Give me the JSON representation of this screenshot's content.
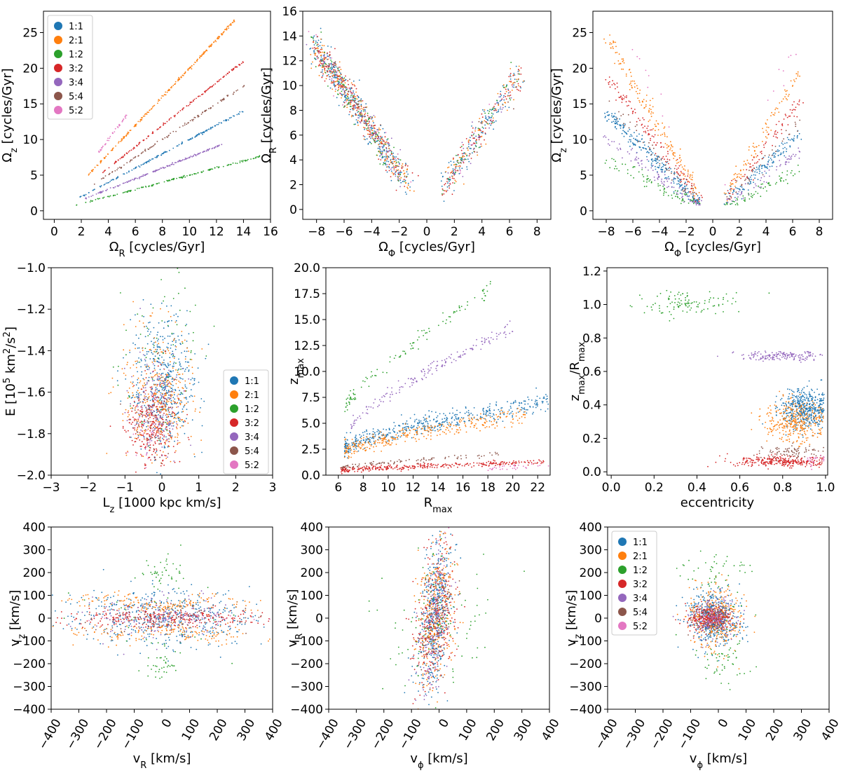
{
  "figure": {
    "colors": {
      "1:1": "#1f77b4",
      "2:1": "#ff7f0e",
      "1:2": "#2ca02c",
      "3:2": "#d62728",
      "3:4": "#9467bd",
      "5:4": "#8c564b",
      "5:2": "#e377c2"
    },
    "resonances": [
      "1:1",
      "2:1",
      "1:2",
      "3:2",
      "3:4",
      "5:4",
      "5:2"
    ]
  },
  "chart_data": [
    {
      "id": "p1",
      "type": "scatter",
      "xlabel": "Ω_R [cycles/Gyr]",
      "ylabel": "Ω_z [cycles/Gyr]",
      "xlim": [
        -0.8,
        16
      ],
      "ylim": [
        -1.2,
        28
      ],
      "xticks": [
        "0",
        "2",
        "4",
        "6",
        "8",
        "10",
        "12",
        "14",
        "16"
      ],
      "xtick_values": [
        0,
        2,
        4,
        6,
        8,
        10,
        12,
        14,
        16
      ],
      "yticks": [
        "0",
        "5",
        "10",
        "15",
        "20",
        "25"
      ],
      "ytick_values": [
        0,
        5,
        10,
        15,
        20,
        25
      ],
      "legend": {
        "location": "upper-left",
        "entries": [
          "1:1",
          "2:1",
          "1:2",
          "3:2",
          "3:4",
          "5:4",
          "5:2"
        ]
      },
      "series": [
        {
          "name": "1:1",
          "shape": "line",
          "x": [
            1.8,
            14.0
          ],
          "slope": 1.0,
          "n": 160,
          "spread": 0.05
        },
        {
          "name": "2:1",
          "shape": "line",
          "x": [
            2.4,
            13.4
          ],
          "slope": 2.0,
          "n": 220,
          "spread": 0.08
        },
        {
          "name": "1:2",
          "shape": "line",
          "x": [
            1.4,
            15.2
          ],
          "slope": 0.5,
          "n": 150,
          "spread": 0.05
        },
        {
          "name": "3:2",
          "shape": "line",
          "x": [
            3.4,
            14.0
          ],
          "slope": 1.5,
          "n": 150,
          "spread": 0.06
        },
        {
          "name": "3:4",
          "shape": "line",
          "x": [
            2.2,
            12.4
          ],
          "slope": 0.75,
          "n": 160,
          "spread": 0.05
        },
        {
          "name": "5:4",
          "shape": "line",
          "x": [
            2.8,
            14.2
          ],
          "slope": 1.25,
          "n": 110,
          "spread": 0.06
        },
        {
          "name": "5:2",
          "shape": "line",
          "x": [
            3.2,
            5.5
          ],
          "slope": 2.5,
          "n": 40,
          "spread": 0.12
        }
      ]
    },
    {
      "id": "p2",
      "type": "scatter",
      "xlabel": "Ω_Φ [cycles/Gyr]",
      "ylabel": "Ω_R [cycles/Gyr]",
      "xlim": [
        -9,
        9
      ],
      "ylim": [
        -0.8,
        16
      ],
      "xticks": [
        "−8",
        "−6",
        "−4",
        "−2",
        "0",
        "2",
        "4",
        "6",
        "8"
      ],
      "xtick_values": [
        -8,
        -6,
        -4,
        -2,
        0,
        2,
        4,
        6,
        8
      ],
      "yticks": [
        "0",
        "2",
        "4",
        "6",
        "8",
        "10",
        "12",
        "14",
        "16"
      ],
      "ytick_values": [
        0,
        2,
        4,
        6,
        8,
        10,
        12,
        14,
        16
      ],
      "series": [
        {
          "name": "1:1",
          "shape": "v",
          "count": 500
        },
        {
          "name": "2:1",
          "shape": "v",
          "count": 280
        },
        {
          "name": "1:2",
          "shape": "v",
          "count": 160
        },
        {
          "name": "3:2",
          "shape": "v",
          "count": 280
        },
        {
          "name": "3:4",
          "shape": "v",
          "count": 100
        },
        {
          "name": "5:4",
          "shape": "v",
          "count": 60
        },
        {
          "name": "5:2",
          "shape": "v",
          "count": 30
        }
      ]
    },
    {
      "id": "p3",
      "type": "scatter",
      "xlabel": "Ω_Φ [cycles/Gyr]",
      "ylabel": "Ω_z [cycles/Gyr]",
      "xlim": [
        -9,
        9
      ],
      "ylim": [
        -1.2,
        28
      ],
      "xticks": [
        "−8",
        "−6",
        "−4",
        "−2",
        "0",
        "2",
        "4",
        "6",
        "8"
      ],
      "xtick_values": [
        -8,
        -6,
        -4,
        -2,
        0,
        2,
        4,
        6,
        8
      ],
      "yticks": [
        "0",
        "5",
        "10",
        "15",
        "20",
        "25"
      ],
      "ytick_values": [
        0,
        5,
        10,
        15,
        20,
        25
      ],
      "series": [
        {
          "name": "1:1",
          "shape": "vband",
          "slope": 1.8,
          "n": 380
        },
        {
          "name": "2:1",
          "shape": "vband",
          "slope": 3.2,
          "n": 260
        },
        {
          "name": "1:2",
          "shape": "vband",
          "slope": 0.95,
          "n": 140
        },
        {
          "name": "3:2",
          "shape": "vband",
          "slope": 2.5,
          "n": 200
        },
        {
          "name": "3:4",
          "shape": "vband",
          "slope": 1.35,
          "n": 150
        },
        {
          "name": "5:4",
          "shape": "vband",
          "slope": 2.1,
          "n": 90
        },
        {
          "name": "5:2",
          "shape": "vband",
          "slope": 4.0,
          "n": 20
        }
      ]
    },
    {
      "id": "p4",
      "type": "scatter",
      "xlabel": "L_z [1000 kpc km/s]",
      "ylabel": "E [10^5 km^2/s^2]",
      "xlim": [
        -3,
        3
      ],
      "ylim": [
        -2.0,
        -1.0
      ],
      "xticks": [
        "−3",
        "−2",
        "−1",
        "0",
        "1",
        "2",
        "3"
      ],
      "xtick_values": [
        -3,
        -2,
        -1,
        0,
        1,
        2,
        3
      ],
      "yticks": [
        "−2.0",
        "−1.8",
        "−1.6",
        "−1.4",
        "−1.2",
        "−1.0"
      ],
      "ytick_values": [
        -2.0,
        -1.8,
        -1.6,
        -1.4,
        -1.2,
        -1.0
      ],
      "legend": {
        "location": "lower-right",
        "entries": [
          "1:1",
          "2:1",
          "1:2",
          "3:2",
          "3:4",
          "5:4",
          "5:2"
        ]
      },
      "series": [
        {
          "name": "1:1",
          "shape": "blob",
          "center": [
            0.0,
            -1.55
          ],
          "sd": [
            0.45,
            0.17
          ],
          "n": 500
        },
        {
          "name": "2:1",
          "shape": "blob",
          "center": [
            -0.1,
            -1.62
          ],
          "sd": [
            0.5,
            0.15
          ],
          "n": 350
        },
        {
          "name": "1:2",
          "shape": "blob",
          "center": [
            0.0,
            -1.4
          ],
          "sd": [
            0.6,
            0.22
          ],
          "n": 70
        },
        {
          "name": "3:2",
          "shape": "blob",
          "center": [
            -0.25,
            -1.75
          ],
          "sd": [
            0.35,
            0.1
          ],
          "n": 280
        },
        {
          "name": "3:4",
          "shape": "blob",
          "center": [
            -0.1,
            -1.65
          ],
          "sd": [
            0.35,
            0.12
          ],
          "n": 150
        },
        {
          "name": "5:4",
          "shape": "blob",
          "center": [
            -0.2,
            -1.72
          ],
          "sd": [
            0.3,
            0.1
          ],
          "n": 60
        },
        {
          "name": "5:2",
          "shape": "blob",
          "center": [
            -0.4,
            -1.85
          ],
          "sd": [
            0.2,
            0.05
          ],
          "n": 20
        }
      ]
    },
    {
      "id": "p5",
      "type": "scatter",
      "xlabel": "R_max",
      "ylabel": "z_max",
      "xlim": [
        5,
        23
      ],
      "ylim": [
        0,
        20
      ],
      "xticks": [
        "6",
        "8",
        "10",
        "12",
        "14",
        "16",
        "18",
        "20",
        "22"
      ],
      "xtick_values": [
        6,
        8,
        10,
        12,
        14,
        16,
        18,
        20,
        22
      ],
      "yticks": [
        "0.0",
        "2.5",
        "5.0",
        "7.5",
        "10.0",
        "12.5",
        "15.0",
        "17.5",
        "20.0"
      ],
      "ytick_values": [
        0,
        2.5,
        5,
        7.5,
        10,
        12.5,
        15,
        17.5,
        20
      ],
      "series": [
        {
          "name": "1:1",
          "shape": "curve",
          "x": [
            6.5,
            23
          ],
          "y0": 2.8,
          "y1": 7.2,
          "spread": 0.45,
          "n": 480
        },
        {
          "name": "2:1",
          "shape": "curve",
          "x": [
            6.5,
            21
          ],
          "y0": 2.4,
          "y1": 5.8,
          "spread": 0.4,
          "n": 320
        },
        {
          "name": "1:2",
          "shape": "curve",
          "x": [
            6.5,
            18.5
          ],
          "y0": 6.5,
          "y1": 18.2,
          "spread": 0.4,
          "n": 110
        },
        {
          "name": "3:2",
          "shape": "curve",
          "x": [
            6.2,
            22.5
          ],
          "y0": 0.45,
          "y1": 1.3,
          "spread": 0.12,
          "n": 320
        },
        {
          "name": "3:4",
          "shape": "curve",
          "x": [
            7.0,
            20.0
          ],
          "y0": 4.8,
          "y1": 14.2,
          "spread": 0.3,
          "n": 160
        },
        {
          "name": "5:4",
          "shape": "curve",
          "x": [
            6.2,
            19.0
          ],
          "y0": 0.7,
          "y1": 2.0,
          "spread": 0.12,
          "n": 90
        },
        {
          "name": "5:2",
          "shape": "curve",
          "x": [
            18.0,
            23.0
          ],
          "y0": 0.6,
          "y1": 1.0,
          "spread": 0.12,
          "n": 30
        }
      ]
    },
    {
      "id": "p6",
      "type": "scatter",
      "xlabel": "eccentricity",
      "ylabel": "z_max/R_max",
      "xlim": [
        -0.02,
        1.01
      ],
      "ylim": [
        -0.02,
        1.22
      ],
      "xticks": [
        "0.0",
        "0.2",
        "0.4",
        "0.6",
        "0.8",
        "1.0"
      ],
      "xtick_values": [
        0,
        0.2,
        0.4,
        0.6,
        0.8,
        1.0
      ],
      "yticks": [
        "0.0",
        "0.2",
        "0.4",
        "0.6",
        "0.8",
        "1.0",
        "1.2"
      ],
      "ytick_values": [
        0,
        0.2,
        0.4,
        0.6,
        0.8,
        1.0,
        1.2
      ],
      "series": [
        {
          "name": "1:1",
          "shape": "ecc",
          "center": [
            0.9,
            0.38
          ],
          "sd": [
            0.06,
            0.06
          ],
          "n": 480
        },
        {
          "name": "2:1",
          "shape": "ecc",
          "center": [
            0.86,
            0.3
          ],
          "sd": [
            0.07,
            0.06
          ],
          "n": 320
        },
        {
          "name": "1:2",
          "shape": "ecc",
          "center": [
            0.35,
            1.0
          ],
          "sd": [
            0.12,
            0.04
          ],
          "n": 110
        },
        {
          "name": "3:2",
          "shape": "ecc",
          "center": [
            0.8,
            0.06
          ],
          "sd": [
            0.12,
            0.015
          ],
          "n": 280
        },
        {
          "name": "3:4",
          "shape": "ecc",
          "center": [
            0.8,
            0.69
          ],
          "sd": [
            0.1,
            0.015
          ],
          "n": 160
        },
        {
          "name": "5:4",
          "shape": "ecc",
          "center": [
            0.85,
            0.12
          ],
          "sd": [
            0.08,
            0.02
          ],
          "n": 80
        },
        {
          "name": "5:2",
          "shape": "ecc",
          "center": [
            0.96,
            0.07
          ],
          "sd": [
            0.03,
            0.02
          ],
          "n": 25
        }
      ]
    },
    {
      "id": "p7",
      "type": "scatter",
      "xlabel": "v_R [km/s]",
      "ylabel": "v_z [km/s]",
      "xlim": [
        -400,
        400
      ],
      "ylim": [
        -400,
        400
      ],
      "xticks": [
        "−400",
        "−300",
        "−200",
        "−100",
        "0",
        "100",
        "200",
        "300",
        "400"
      ],
      "xtick_values": [
        -400,
        -300,
        -200,
        -100,
        0,
        100,
        200,
        300,
        400
      ],
      "yticks": [
        "−400",
        "−300",
        "−200",
        "−100",
        "0",
        "100",
        "200",
        "300",
        "400"
      ],
      "ytick_values": [
        -400,
        -300,
        -200,
        -100,
        0,
        100,
        200,
        300,
        400
      ],
      "series": [
        {
          "name": "1:1",
          "shape": "band",
          "sdx": 180,
          "sdy": 65,
          "n": 480
        },
        {
          "name": "2:1",
          "shape": "band2",
          "sdx": 150,
          "sdy": 80,
          "n": 320
        },
        {
          "name": "1:2",
          "shape": "band3",
          "sdx": 40,
          "sdy": 200,
          "n": 110
        },
        {
          "name": "3:2",
          "shape": "band",
          "sdx": 170,
          "sdy": 20,
          "n": 280
        },
        {
          "name": "3:4",
          "shape": "band",
          "sdx": 120,
          "sdy": 60,
          "n": 150
        },
        {
          "name": "5:4",
          "shape": "band",
          "sdx": 160,
          "sdy": 30,
          "n": 80
        },
        {
          "name": "5:2",
          "shape": "band",
          "sdx": 200,
          "sdy": 12,
          "n": 25
        }
      ]
    },
    {
      "id": "p8",
      "type": "scatter",
      "xlabel": "v_ϕ [km/s]",
      "ylabel": "v_R [km/s]",
      "xlim": [
        -400,
        400
      ],
      "ylim": [
        -400,
        400
      ],
      "xticks": [
        "−400",
        "−300",
        "−200",
        "−100",
        "0",
        "100",
        "200",
        "300",
        "400"
      ],
      "xtick_values": [
        -400,
        -300,
        -200,
        -100,
        0,
        100,
        200,
        300,
        400
      ],
      "yticks": [
        "−400",
        "−300",
        "−200",
        "−100",
        "0",
        "100",
        "200",
        "300",
        "400"
      ],
      "ytick_values": [
        -400,
        -300,
        -200,
        -100,
        0,
        100,
        200,
        300,
        400
      ],
      "series": [
        {
          "name": "1:1",
          "shape": "column",
          "sdx": 28,
          "sdy": 180,
          "n": 480
        },
        {
          "name": "2:1",
          "shape": "column",
          "sdx": 35,
          "sdy": 170,
          "n": 320
        },
        {
          "name": "1:2",
          "shape": "column",
          "sdx": 90,
          "sdy": 150,
          "n": 110
        },
        {
          "name": "3:2",
          "shape": "column",
          "sdx": 40,
          "sdy": 160,
          "n": 280
        },
        {
          "name": "3:4",
          "shape": "column",
          "sdx": 25,
          "sdy": 170,
          "n": 150
        },
        {
          "name": "5:4",
          "shape": "column",
          "sdx": 30,
          "sdy": 150,
          "n": 80
        },
        {
          "name": "5:2",
          "shape": "column",
          "sdx": 20,
          "sdy": 180,
          "n": 25
        }
      ]
    },
    {
      "id": "p9",
      "type": "scatter",
      "xlabel": "v_ϕ [km/s]",
      "ylabel": "v_z [km/s]",
      "xlim": [
        -400,
        400
      ],
      "ylim": [
        -400,
        400
      ],
      "xticks": [
        "−400",
        "−300",
        "−200",
        "−100",
        "0",
        "100",
        "200",
        "300",
        "400"
      ],
      "xtick_values": [
        -400,
        -300,
        -200,
        -100,
        0,
        100,
        200,
        300,
        400
      ],
      "yticks": [
        "−400",
        "−300",
        "−200",
        "−100",
        "0",
        "100",
        "200",
        "300",
        "400"
      ],
      "ytick_values": [
        -400,
        -300,
        -200,
        -100,
        0,
        100,
        200,
        300,
        400
      ],
      "legend": {
        "location": "upper-left",
        "entries": [
          "1:1",
          "2:1",
          "1:2",
          "3:2",
          "3:4",
          "5:4",
          "5:2"
        ]
      },
      "series": [
        {
          "name": "1:1",
          "shape": "blob",
          "center": [
            -10,
            0
          ],
          "sd": [
            45,
            60
          ],
          "n": 480
        },
        {
          "name": "2:1",
          "shape": "blob",
          "center": [
            -10,
            0
          ],
          "sd": [
            50,
            70
          ],
          "n": 320
        },
        {
          "name": "1:2",
          "shape": "split",
          "center": [
            0,
            0
          ],
          "sd": [
            60,
            200
          ],
          "n": 110
        },
        {
          "name": "3:2",
          "shape": "blob",
          "center": [
            -30,
            0
          ],
          "sd": [
            40,
            25
          ],
          "n": 280
        },
        {
          "name": "3:4",
          "shape": "blob",
          "center": [
            -10,
            0
          ],
          "sd": [
            40,
            55
          ],
          "n": 150
        },
        {
          "name": "5:4",
          "shape": "blob",
          "center": [
            -20,
            0
          ],
          "sd": [
            35,
            30
          ],
          "n": 80
        },
        {
          "name": "5:2",
          "shape": "blob",
          "center": [
            -20,
            0
          ],
          "sd": [
            25,
            15
          ],
          "n": 25
        }
      ]
    }
  ]
}
